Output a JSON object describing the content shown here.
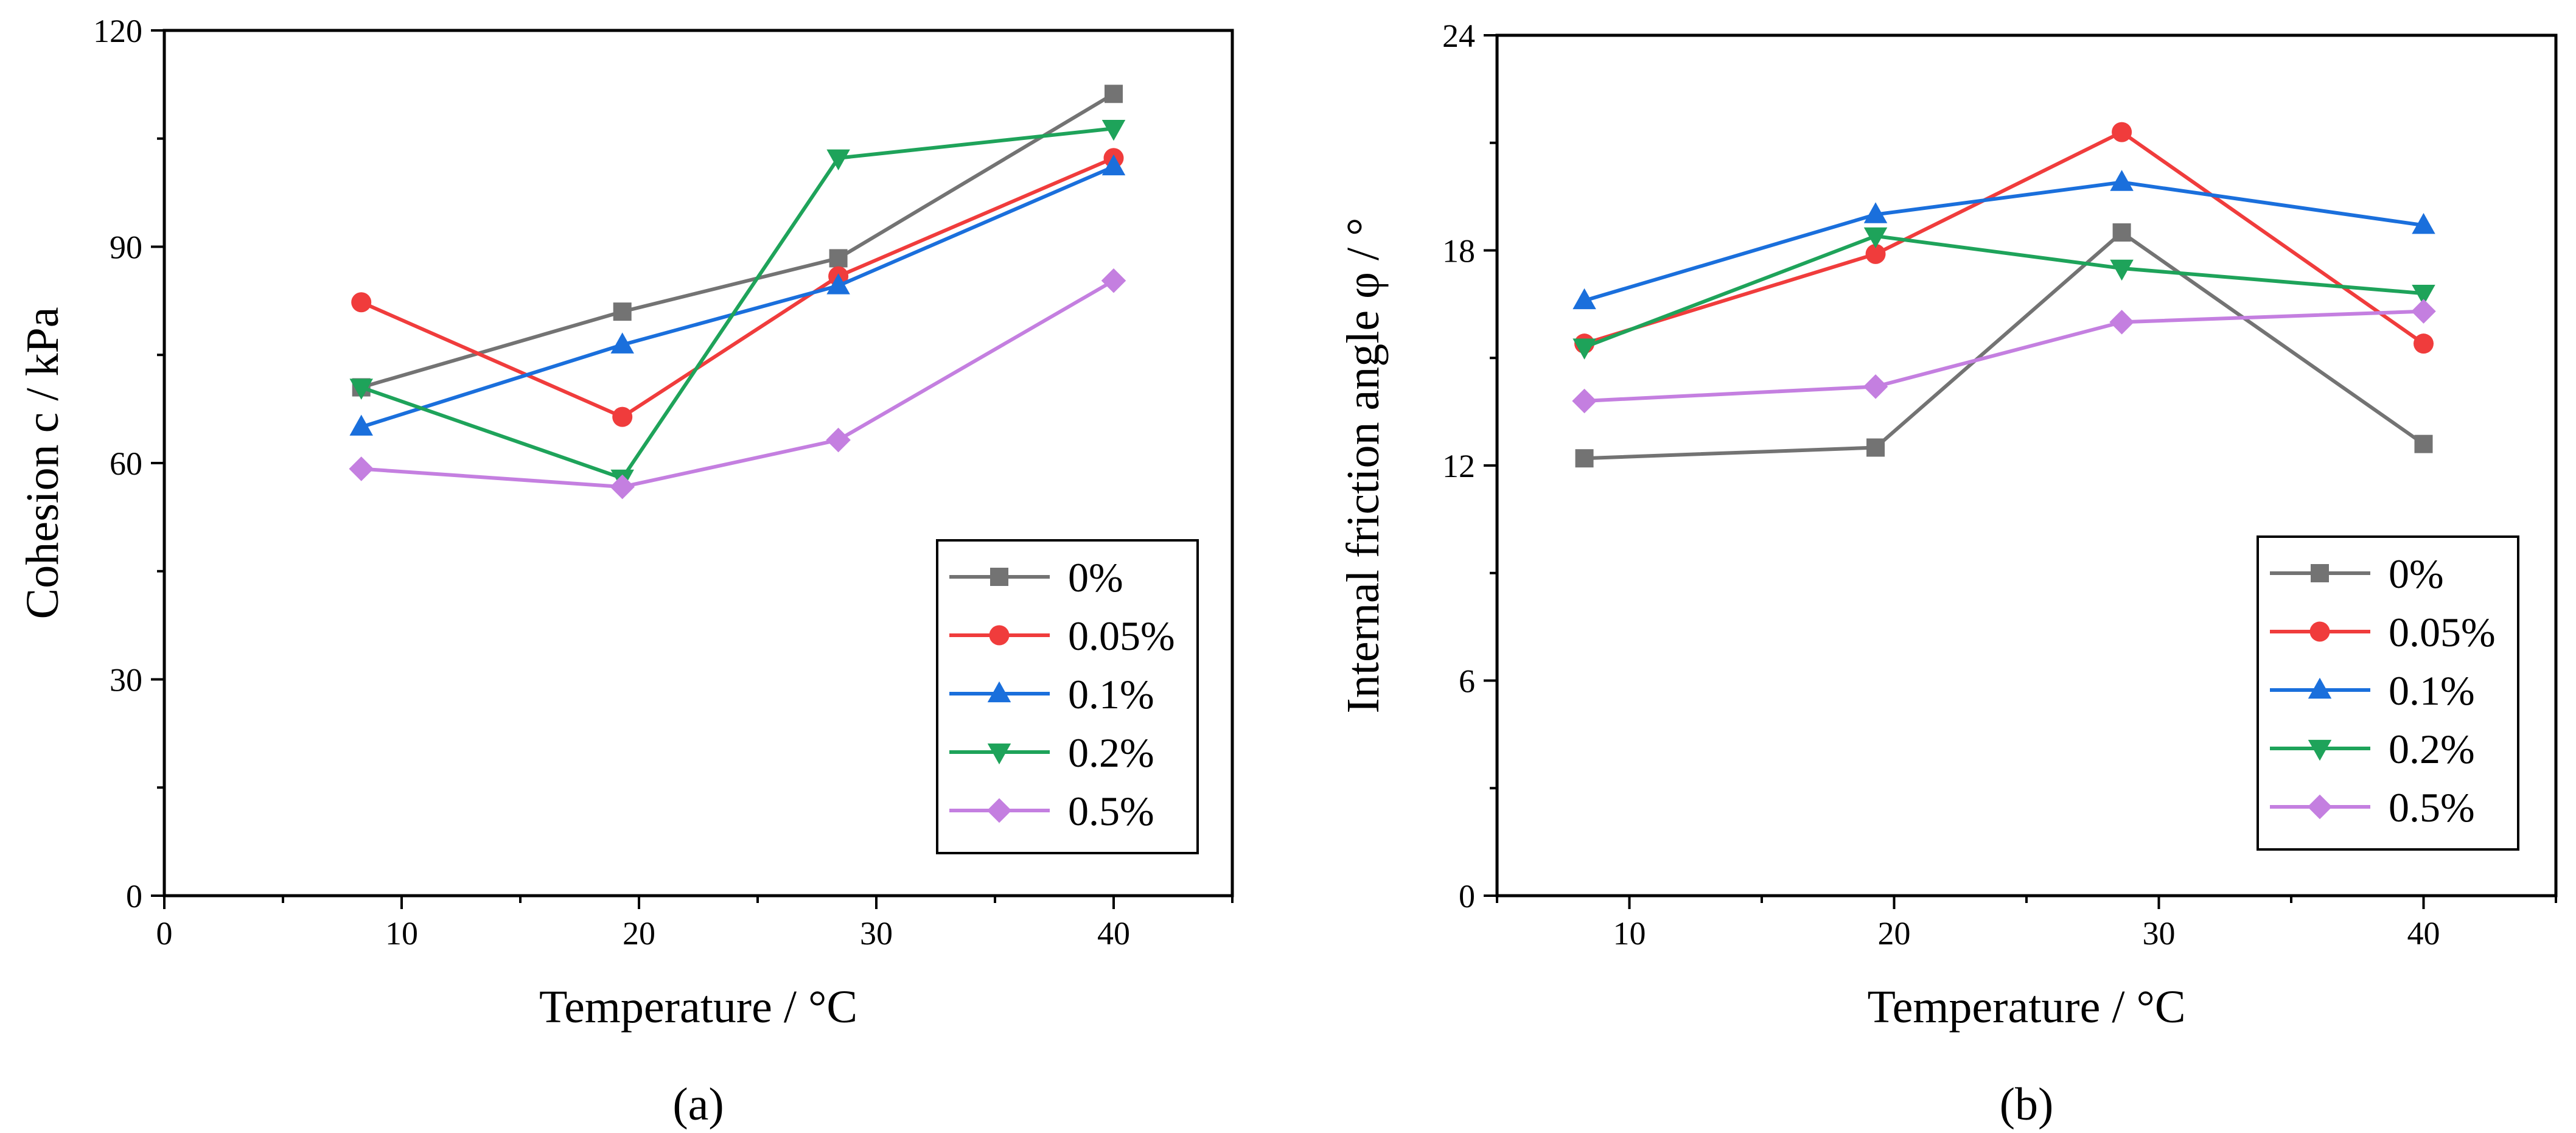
{
  "chart_data": [
    {
      "type": "line",
      "panel_label": "(a)",
      "xlabel": "Temperature / °C",
      "ylabel": "Cohesion c / kPa",
      "xlim": [
        0,
        45
      ],
      "ylim": [
        0,
        120
      ],
      "xticks": [
        0,
        10,
        20,
        30,
        40
      ],
      "yticks": [
        0,
        30,
        60,
        90,
        120
      ],
      "grid": false,
      "legend_position": "bottom-right",
      "x": [
        8.3,
        19.3,
        28.4,
        40.0
      ],
      "series": [
        {
          "name": "0%",
          "marker": "square",
          "color": "#737373",
          "values": [
            70.5,
            81.0,
            88.4,
            111.2
          ]
        },
        {
          "name": "0.05%",
          "marker": "circle",
          "color": "#f03c3c",
          "values": [
            82.3,
            66.4,
            85.9,
            102.3
          ]
        },
        {
          "name": "0.1%",
          "marker": "triangle-up",
          "color": "#1a6fdc",
          "values": [
            65.0,
            76.4,
            84.6,
            101.1
          ]
        },
        {
          "name": "0.2%",
          "marker": "triangle-down",
          "color": "#1ea35a",
          "values": [
            70.5,
            57.9,
            102.3,
            106.4
          ]
        },
        {
          "name": "0.5%",
          "marker": "diamond",
          "color": "#c47fe0",
          "values": [
            59.2,
            56.7,
            63.2,
            85.3
          ]
        }
      ]
    },
    {
      "type": "line",
      "panel_label": "(b)",
      "xlabel": "Temperature / °C",
      "ylabel": "Internal friction angle φ / °",
      "xlim": [
        5,
        45
      ],
      "ylim": [
        0,
        24
      ],
      "xticks": [
        10,
        20,
        30,
        40
      ],
      "yticks": [
        0,
        6,
        12,
        18,
        24
      ],
      "grid": false,
      "legend_position": "bottom-right",
      "x": [
        8.3,
        19.3,
        28.6,
        40.0
      ],
      "series": [
        {
          "name": "0%",
          "marker": "square",
          "color": "#737373",
          "values": [
            12.2,
            12.5,
            18.5,
            12.6
          ]
        },
        {
          "name": "0.05%",
          "marker": "circle",
          "color": "#f03c3c",
          "values": [
            15.4,
            17.9,
            21.3,
            15.4
          ]
        },
        {
          "name": "0.1%",
          "marker": "triangle-up",
          "color": "#1a6fdc",
          "values": [
            16.6,
            19.0,
            19.9,
            18.7
          ]
        },
        {
          "name": "0.2%",
          "marker": "triangle-down",
          "color": "#1ea35a",
          "values": [
            15.3,
            18.4,
            17.5,
            16.8
          ]
        },
        {
          "name": "0.5%",
          "marker": "diamond",
          "color": "#c47fe0",
          "values": [
            13.8,
            14.2,
            16.0,
            16.3
          ]
        }
      ]
    }
  ]
}
